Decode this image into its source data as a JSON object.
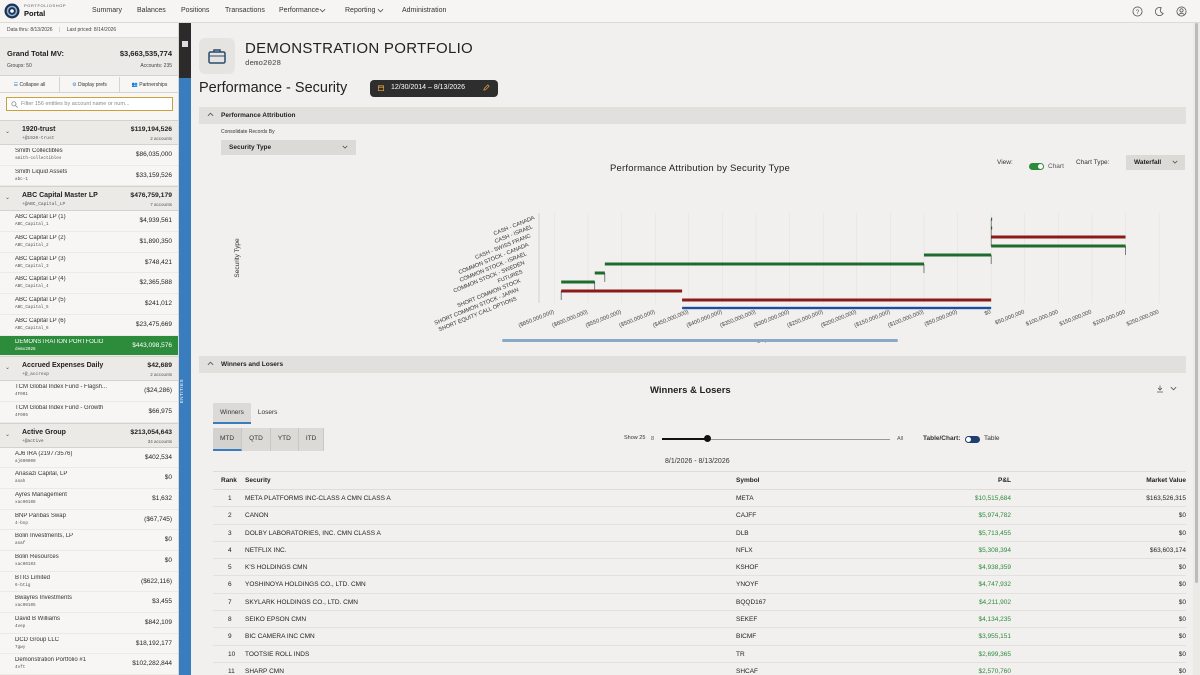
{
  "app": {
    "brand_super": "PORTFOLIOSHOP",
    "brand_title": "Portal"
  },
  "nav": [
    {
      "label": "Summary"
    },
    {
      "label": "Balances"
    },
    {
      "label": "Positions"
    },
    {
      "label": "Transactions"
    },
    {
      "label": "Performance"
    },
    {
      "label": "Reporting"
    },
    {
      "label": "Administration"
    }
  ],
  "left": {
    "data_thru": "Data thru: 8/13/2026",
    "last_priced": "Last priced: 8/14/2026",
    "grand_total_label": "Grand Total MV:",
    "grand_total_value": "$3,663,535,774",
    "groups": "Groups: 50",
    "accounts": "Accounts: 235",
    "actions": [
      "Collapse all",
      "Display prefs",
      "Partnerships"
    ],
    "filter_placeholder": "Filter 156 entities by account name or num...",
    "entities_tab": "ENTITIES",
    "entries": [
      {
        "kind": "group",
        "name": "1920-trust",
        "sub": "+@1920-trust",
        "value": "$119,194,526",
        "count": "2 accounts"
      },
      {
        "kind": "acct",
        "name": "Smith Collectibles",
        "sub": "smith-collectibles",
        "value": "$86,035,000"
      },
      {
        "kind": "acct",
        "name": "Smith Liquid Assets",
        "sub": "abc-1",
        "value": "$33,159,526"
      },
      {
        "kind": "group",
        "name": "ABC Capital Master LP",
        "sub": "+@ABC_Capital_LP",
        "value": "$476,759,179",
        "count": "7 accounts"
      },
      {
        "kind": "acct",
        "name": "ABC Capital LP (1)",
        "sub": "ABC_Capital_1",
        "value": "$4,939,561"
      },
      {
        "kind": "acct",
        "name": "ABC Capital LP (2)",
        "sub": "ABC_Capital_2",
        "value": "$1,890,350"
      },
      {
        "kind": "acct",
        "name": "ABC Capital LP (3)",
        "sub": "ABC_Capital_3",
        "value": "$748,421"
      },
      {
        "kind": "acct",
        "name": "ABC Capital LP (4)",
        "sub": "ABC_Capital_4",
        "value": "$2,365,588"
      },
      {
        "kind": "acct",
        "name": "ABC Capital LP (5)",
        "sub": "ABC_Capital_5",
        "value": "$241,012"
      },
      {
        "kind": "acct",
        "name": "ABC Capital LP (6)",
        "sub": "ABC_Capital_6",
        "value": "$23,475,669"
      },
      {
        "kind": "acct",
        "name": "DEMONSTRATION PORTFOLIO",
        "sub": "demo2028",
        "value": "$443,098,576",
        "selected": true
      },
      {
        "kind": "group",
        "name": "Accrued Expenses Daily",
        "sub": "+@_accrexp",
        "value": "$42,689",
        "count": "2 accounts"
      },
      {
        "kind": "acct",
        "name": "TCM Global Index Fund - Flagsh...",
        "sub": "4F001",
        "value": "($24,286)"
      },
      {
        "kind": "acct",
        "name": "TCM Global Index Fund - Growth",
        "sub": "4F005",
        "value": "$66,975"
      },
      {
        "kind": "group",
        "name": "Active Group",
        "sub": "+@active",
        "value": "$213,054,643",
        "count": "34 accounts"
      },
      {
        "kind": "acct",
        "name": "AJ6 IRA (219773576)",
        "sub": "aj600000",
        "value": "$402,534"
      },
      {
        "kind": "acct",
        "name": "Anasazi Capital, LP",
        "sub": "anah",
        "value": "$0"
      },
      {
        "kind": "acct",
        "name": "Ayres Management",
        "sub": "xac00108",
        "value": "$1,632"
      },
      {
        "kind": "acct",
        "name": "BNP Paribas Swap",
        "sub": "4-bnp",
        "value": "($67,745)"
      },
      {
        "kind": "acct",
        "name": "Bolin Investments, LP",
        "sub": "anaf",
        "value": "$0"
      },
      {
        "kind": "acct",
        "name": "Bolin Resources",
        "sub": "xac00103",
        "value": "$0"
      },
      {
        "kind": "acct",
        "name": "BTIG Limited",
        "sub": "6-btig",
        "value": "($622,116)"
      },
      {
        "kind": "acct",
        "name": "Bwayres Investments",
        "sub": "xac00105",
        "value": "$3,455"
      },
      {
        "kind": "acct",
        "name": "David B Williams",
        "sub": "4vep",
        "value": "$842,109"
      },
      {
        "kind": "acct",
        "name": "DCD Group LLC",
        "sub": "7gwy",
        "value": "$18,192,177"
      },
      {
        "kind": "acct",
        "name": "Demonstration Portfolio #1",
        "sub": "4vft",
        "value": "$102,282,844"
      }
    ]
  },
  "header": {
    "portfolio_title": "DEMONSTRATION PORTFOLIO",
    "portfolio_code": "demo2028",
    "page_title": "Performance - Security",
    "date_range": "12/30/2014 – 8/13/2026"
  },
  "attribution": {
    "section_title": "Performance Attribution",
    "consolidate_label": "Consolidate Records By",
    "consolidate_value": "Security Type",
    "view_label": "View:",
    "view_toggle_label": "Chart",
    "chart_type_label": "Chart Type:",
    "chart_type_value": "Waterfall"
  },
  "chart_data": {
    "type": "waterfall",
    "title": "Performance Attribution by Security Type",
    "xlabel": "Gain",
    "ylabel": "Security Type",
    "xlim": [
      -670000000,
      290000000
    ],
    "x_ticks": [
      "($650,000,000)",
      "($600,000,000)",
      "($550,000,000)",
      "($500,000,000)",
      "($450,000,000)",
      "($400,000,000)",
      "($350,000,000)",
      "($300,000,000)",
      "($250,000,000)",
      "($200,000,000)",
      "($150,000,000)",
      "($100,000,000)",
      "($50,000,000)",
      "$0",
      "$50,000,000",
      "$100,000,000",
      "$150,000,000",
      "$200,000,000",
      "$250,000,000"
    ],
    "x_tick_values": [
      -650000000,
      -600000000,
      -550000000,
      -500000000,
      -450000000,
      -400000000,
      -350000000,
      -300000000,
      -250000000,
      -200000000,
      -150000000,
      -100000000,
      -50000000,
      0,
      50000000,
      100000000,
      150000000,
      200000000,
      250000000
    ],
    "categories": [
      "CASH - CANADA",
      "CASH - ISRAEL",
      "CASH - SWISS FRANC",
      "COMMON STOCK - CANADA",
      "COMMON STOCK - ISRAEL",
      "COMMON STOCK - SWEDEN",
      "FUTURES",
      "SHORT COMMON STOCK",
      "SHORT COMMON STOCK - JAPAN",
      "SHORT EQUITY CALL OPTIONS"
    ],
    "steps": [
      {
        "start": 0,
        "end": 0
      },
      {
        "start": 0,
        "end": 0
      },
      {
        "start": 200000000,
        "end": 0
      },
      {
        "start": 0,
        "end": 200000000
      },
      {
        "start": -100000000,
        "end": 0
      },
      {
        "start": -575000000,
        "end": -100000000
      },
      {
        "start": -590000000,
        "end": -575000000
      },
      {
        "start": -640000000,
        "end": -590000000
      },
      {
        "start": -460000000,
        "end": -640000000
      },
      {
        "start": 0,
        "end": -460000000
      }
    ],
    "colors": {
      "positive": "#1e6b2e",
      "negative": "#8b1a1a",
      "total": "#1f4e9e"
    }
  },
  "winners": {
    "section_title": "Winners and Losers",
    "title": "Winners & Losers",
    "tabs": [
      "Winners",
      "Losers"
    ],
    "periods": [
      "MTD",
      "QTD",
      "YTD",
      "ITD"
    ],
    "show_label": "Show 25",
    "slider_min": "8",
    "slider_max": "All",
    "show_level": 0.2,
    "table_chart_label": "Table/Chart:",
    "table_label": "Table",
    "date_range": "8/1/2026 - 8/13/2026",
    "columns": [
      "Rank",
      "Security",
      "Symbol",
      "P&L",
      "Market Value"
    ],
    "rows": [
      [
        "1",
        "META PLATFORMS INC-CLASS A CMN CLASS A",
        "META",
        "$10,515,684",
        "$163,526,315"
      ],
      [
        "2",
        "CANON",
        "CAJFF",
        "$5,974,782",
        "$0"
      ],
      [
        "3",
        "DOLBY LABORATORIES, INC. CMN CLASS A",
        "DLB",
        "$5,713,455",
        "$0"
      ],
      [
        "4",
        "NETFLIX INC.",
        "NFLX",
        "$5,308,394",
        "$63,603,174"
      ],
      [
        "5",
        "K'S HOLDINGS CMN",
        "KSHOF",
        "$4,938,359",
        "$0"
      ],
      [
        "6",
        "YOSHINOYA HOLDINGS CO., LTD. CMN",
        "YNOYF",
        "$4,747,932",
        "$0"
      ],
      [
        "7",
        "SKYLARK HOLDINGS CO., LTD. CMN",
        "BQQD167",
        "$4,211,902",
        "$0"
      ],
      [
        "8",
        "SEIKO EPSON CMN",
        "SEKEF",
        "$4,134,235",
        "$0"
      ],
      [
        "9",
        "BIC CAMERA INC CMN",
        "BICMF",
        "$3,955,151",
        "$0"
      ],
      [
        "10",
        "TOOTSIE ROLL INDS",
        "TR",
        "$2,699,365",
        "$0"
      ],
      [
        "11",
        "SHARP CMN",
        "SHCAF",
        "$2,570,760",
        "$0"
      ]
    ]
  }
}
